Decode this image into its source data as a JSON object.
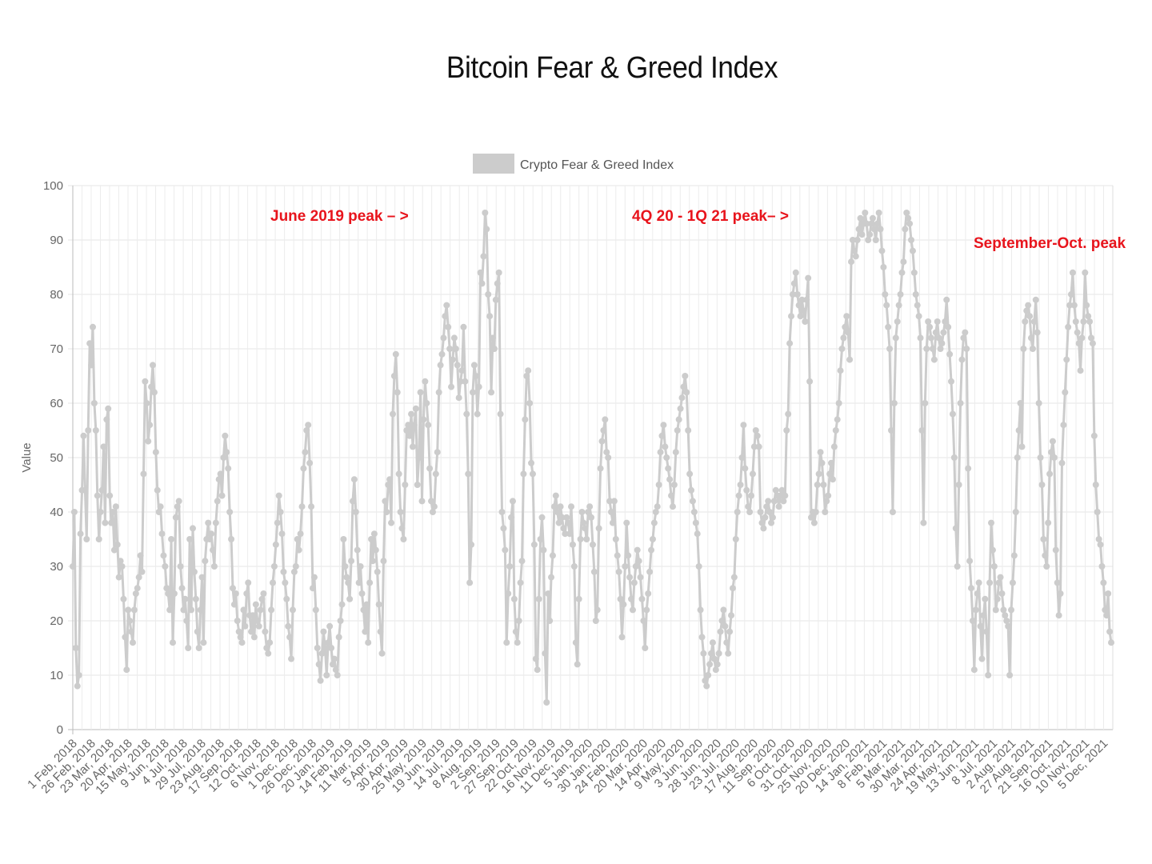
{
  "title": "Bitcoin Fear & Greed Index",
  "chart_data": {
    "type": "line",
    "ylabel": "Value",
    "xlabel": "",
    "ylim": [
      0,
      100
    ],
    "yticks": [
      0,
      10,
      20,
      30,
      40,
      50,
      60,
      70,
      80,
      90,
      100
    ],
    "grid": true,
    "legend": {
      "position": "top-center",
      "label": "Crypto Fear & Greed Index"
    },
    "series": [
      {
        "name": "Crypto Fear & Greed Index",
        "color": "#cccccc",
        "values": [
          30,
          40,
          15,
          8,
          10,
          36,
          44,
          54,
          44,
          35,
          55,
          71,
          67,
          74,
          60,
          55,
          43,
          35,
          40,
          44,
          52,
          38,
          57,
          59,
          43,
          38,
          40,
          33,
          41,
          34,
          28,
          31,
          30,
          24,
          17,
          11,
          22,
          20,
          18,
          16,
          22,
          25,
          26,
          28,
          32,
          29,
          47,
          64,
          60,
          53,
          56,
          63,
          67,
          62,
          51,
          44,
          40,
          41,
          36,
          32,
          30,
          26,
          25,
          22,
          35,
          16,
          25,
          39,
          41,
          42,
          30,
          26,
          22,
          24,
          20,
          15,
          35,
          22,
          37,
          29,
          24,
          18,
          15,
          22,
          28,
          16,
          31,
          35,
          38,
          35,
          36,
          33,
          30,
          38,
          42,
          46,
          47,
          43,
          50,
          54,
          51,
          48,
          40,
          35,
          26,
          23,
          25,
          20,
          18,
          17,
          16,
          22,
          19,
          25,
          27,
          21,
          18,
          21,
          17,
          23,
          20,
          19,
          22,
          24,
          25,
          18,
          15,
          14,
          16,
          22,
          27,
          30,
          34,
          38,
          43,
          40,
          36,
          29,
          27,
          24,
          19,
          17,
          13,
          22,
          29,
          30,
          35,
          33,
          36,
          41,
          48,
          51,
          55,
          56,
          49,
          41,
          26,
          28,
          22,
          15,
          12,
          9,
          14,
          18,
          15,
          10,
          16,
          19,
          15,
          12,
          13,
          11,
          10,
          17,
          20,
          23,
          35,
          30,
          28,
          27,
          24,
          31,
          42,
          46,
          40,
          33,
          27,
          30,
          25,
          22,
          18,
          23,
          16,
          27,
          35,
          31,
          36,
          33,
          29,
          23,
          18,
          14,
          31,
          42,
          40,
          45,
          46,
          38,
          58,
          65,
          69,
          62,
          47,
          40,
          37,
          35,
          45,
          55,
          56,
          54,
          58,
          52,
          56,
          59,
          45,
          50,
          62,
          42,
          57,
          64,
          60,
          56,
          48,
          42,
          40,
          41,
          47,
          51,
          62,
          67,
          69,
          72,
          76,
          78,
          74,
          70,
          63,
          68,
          72,
          70,
          67,
          61,
          64,
          66,
          74,
          64,
          58,
          47,
          27,
          34,
          62,
          67,
          65,
          58,
          63,
          84,
          82,
          87,
          95,
          92,
          80,
          76,
          62,
          72,
          70,
          79,
          82,
          84,
          58,
          40,
          37,
          33,
          16,
          25,
          30,
          39,
          42,
          24,
          18,
          16,
          20,
          27,
          31,
          47,
          57,
          65,
          66,
          60,
          49,
          47,
          34,
          13,
          11,
          24,
          35,
          39,
          33,
          14,
          5,
          25,
          20,
          28,
          32,
          41,
          43,
          40,
          38,
          41,
          39,
          37,
          36,
          39,
          38,
          36,
          41,
          34,
          30,
          16,
          12,
          24,
          35,
          40,
          38,
          37,
          35,
          40,
          41,
          39,
          34,
          29,
          20,
          22,
          37,
          48,
          53,
          55,
          57,
          51,
          50,
          42,
          40,
          38,
          42,
          35,
          32,
          29,
          24,
          17,
          23,
          30,
          38,
          32,
          28,
          24,
          22,
          27,
          30,
          33,
          31,
          28,
          24,
          20,
          15,
          22,
          25,
          29,
          33,
          35,
          38,
          40,
          41,
          45,
          51,
          54,
          56,
          52,
          50,
          48,
          46,
          43,
          41,
          45,
          51,
          55,
          57,
          59,
          61,
          63,
          65,
          62,
          55,
          47,
          44,
          42,
          40,
          38,
          36,
          30,
          22,
          17,
          14,
          9,
          8,
          10,
          12,
          14,
          16,
          13,
          11,
          12,
          14,
          18,
          20,
          22,
          19,
          16,
          14,
          18,
          21,
          26,
          28,
          35,
          40,
          43,
          45,
          50,
          56,
          48,
          44,
          41,
          40,
          43,
          47,
          52,
          55,
          54,
          52,
          40,
          38,
          37,
          39,
          41,
          42,
          40,
          38,
          39,
          42,
          44,
          43,
          41,
          43,
          44,
          42,
          43,
          55,
          58,
          71,
          76,
          80,
          82,
          84,
          80,
          78,
          76,
          79,
          77,
          75,
          79,
          83,
          64,
          39,
          40,
          38,
          40,
          45,
          47,
          51,
          49,
          45,
          40,
          42,
          43,
          47,
          49,
          46,
          52,
          55,
          57,
          60,
          66,
          70,
          72,
          74,
          76,
          73,
          68,
          86,
          90,
          88,
          87,
          90,
          92,
          94,
          91,
          93,
          95,
          93,
          90,
          91,
          93,
          94,
          92,
          90,
          93,
          95,
          92,
          88,
          85,
          80,
          78,
          74,
          70,
          55,
          40,
          60,
          72,
          75,
          78,
          80,
          84,
          86,
          92,
          95,
          94,
          93,
          90,
          88,
          84,
          80,
          78,
          76,
          72,
          55,
          38,
          60,
          70,
          75,
          74,
          72,
          70,
          68,
          73,
          75,
          72,
          70,
          71,
          73,
          75,
          79,
          74,
          69,
          64,
          58,
          50,
          37,
          30,
          45,
          60,
          68,
          72,
          73,
          70,
          48,
          31,
          26,
          20,
          11,
          22,
          25,
          27,
          19,
          13,
          21,
          24,
          18,
          10,
          27,
          38,
          33,
          30,
          22,
          24,
          27,
          28,
          25,
          22,
          21,
          20,
          19,
          10,
          22,
          27,
          32,
          40,
          50,
          55,
          60,
          52,
          70,
          75,
          77,
          78,
          76,
          72,
          70,
          75,
          79,
          73,
          60,
          50,
          45,
          35,
          32,
          30,
          38,
          47,
          51,
          53,
          50,
          33,
          27,
          21,
          25,
          49,
          56,
          62,
          68,
          74,
          78,
          80,
          84,
          78,
          75,
          73,
          71,
          66,
          72,
          75,
          84,
          78,
          76,
          75,
          72,
          71,
          54,
          45,
          40,
          35,
          34,
          30,
          27,
          22,
          21,
          25,
          18,
          16
        ]
      }
    ],
    "x_tick_labels": [
      "1 Feb, 2018",
      "26 Feb, 2018",
      "23 Mar, 2018",
      "20 Apr, 2018",
      "15 May, 2018",
      "9 Jun, 2018",
      "4 Jul, 2018",
      "29 Jul, 2018",
      "23 Aug, 2018",
      "17 Sep, 2018",
      "12 Oct, 2018",
      "6 Nov, 2018",
      "1 Dec, 2018",
      "26 Dec, 2018",
      "20 Jan, 2019",
      "14 Feb, 2019",
      "11 Mar, 2019",
      "5 Apr, 2019",
      "30 Apr, 2019",
      "25 May, 2019",
      "19 Jun, 2019",
      "14 Jul, 2019",
      "8 Aug, 2019",
      "2 Sep, 2019",
      "27 Sep, 2019",
      "22 Oct, 2019",
      "16 Nov, 2019",
      "11 Dec, 2019",
      "5 Jan, 2020",
      "30 Jan, 2020",
      "24 Feb, 2020",
      "20 Mar, 2020",
      "14 Apr, 2020",
      "9 May, 2020",
      "3 Jun, 2020",
      "28 Jun, 2020",
      "23 Jul, 2020",
      "17 Aug, 2020",
      "11 Sep, 2020",
      "6 Oct, 2020",
      "31 Oct, 2020",
      "25 Nov, 2020",
      "20 Dec, 2020",
      "14 Jan, 2021",
      "8 Feb, 2021",
      "5 Mar, 2021",
      "30 Mar, 2021",
      "24 Apr, 2021",
      "19 May, 2021",
      "13 Jun, 2021",
      "8 Jul, 2021",
      "2 Aug, 2021",
      "27 Aug, 2021",
      "21 Sep, 2021",
      "16 Oct, 2021",
      "10 Nov, 2021",
      "5 Dec, 2021"
    ],
    "annotations": [
      {
        "text": "June 2019 peak – >",
        "color": "#e8141c"
      },
      {
        "text": "4Q 20 - 1Q 21 peak– >",
        "color": "#e8141c"
      },
      {
        "text": "September-Oct. peak",
        "color": "#e8141c"
      }
    ]
  }
}
